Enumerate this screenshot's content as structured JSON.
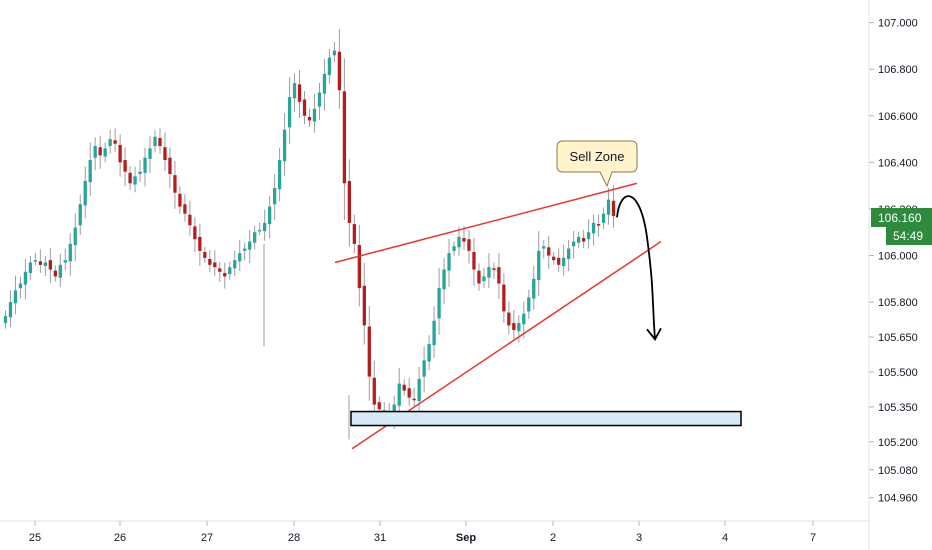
{
  "chart_data": {
    "type": "candlestick",
    "title": "",
    "ylim": [
      104.86,
      107.08
    ],
    "y_ticks": [
      "107.000",
      "106.800",
      "106.600",
      "106.400",
      "106.200",
      "106.000",
      "105.800",
      "105.650",
      "105.500",
      "105.350",
      "105.200",
      "105.080",
      "104.960"
    ],
    "x_ticks": [
      "25",
      "26",
      "27",
      "28",
      "31",
      "Sep",
      "2",
      "3",
      "4",
      "7"
    ],
    "current_price": "106.160",
    "countdown": "54:49",
    "colors": {
      "up": "#26a69a",
      "down": "#b71c1c",
      "wick": "#9e9e9e",
      "trend": "#e53935",
      "badge": "#2e8b3e",
      "zone_fill": "#d6eaf8"
    },
    "annotations": {
      "callout": "Sell Zone",
      "upper_trendline": {
        "from": [
          "28.5",
          105.97
        ],
        "to": [
          "Sep 2.9",
          106.31
        ]
      },
      "lower_trendline": {
        "from": [
          "30.6",
          105.17
        ],
        "to": [
          "Sep 3.3",
          106.06
        ]
      },
      "support_zone": {
        "x_from": "30.6",
        "x_to": "Sep 4.2",
        "y_low": 105.27,
        "y_high": 105.33
      },
      "projected_arrow": {
        "from_price": 106.28,
        "to_price": 105.64
      }
    },
    "candles_close": [
      105.74,
      105.8,
      105.85,
      105.88,
      105.93,
      105.97,
      105.98,
      105.96,
      105.97,
      105.94,
      105.91,
      105.96,
      105.98,
      106.05,
      106.12,
      106.22,
      106.32,
      106.41,
      106.47,
      106.43,
      106.46,
      106.5,
      106.48,
      106.4,
      106.36,
      106.31,
      106.34,
      106.36,
      106.42,
      106.46,
      106.51,
      106.47,
      106.41,
      106.35,
      106.27,
      106.21,
      106.18,
      106.13,
      106.07,
      106.02,
      105.99,
      105.96,
      105.95,
      105.93,
      105.91,
      105.95,
      105.98,
      106.01,
      106.03,
      106.06,
      106.1,
      106.11,
      106.14,
      106.21,
      106.29,
      106.41,
      106.54,
      106.68,
      106.74,
      106.66,
      106.6,
      106.58,
      106.63,
      106.7,
      106.78,
      106.85,
      106.88,
      106.71,
      106.31,
      106.14,
      106.05,
      105.86,
      105.7,
      105.48,
      105.36,
      105.34,
      105.32,
      105.3,
      105.36,
      105.45,
      105.42,
      105.39,
      105.38,
      105.47,
      105.55,
      105.62,
      105.72,
      105.86,
      105.94,
      106.01,
      106.04,
      106.08,
      106.06,
      106.02,
      105.94,
      105.88,
      105.91,
      105.95,
      105.94,
      105.88,
      105.76,
      105.7,
      105.68,
      105.71,
      105.75,
      105.82,
      105.9,
      106.02,
      106.04,
      106.0,
      105.98,
      105.96,
      105.99,
      106.03,
      106.06,
      106.08,
      106.06,
      106.1,
      106.14,
      106.13,
      106.18,
      106.24,
      106.17
    ]
  },
  "callout": {
    "label": "Sell Zone"
  },
  "price_badge": {
    "price": "106.160",
    "countdown": "54:49"
  }
}
